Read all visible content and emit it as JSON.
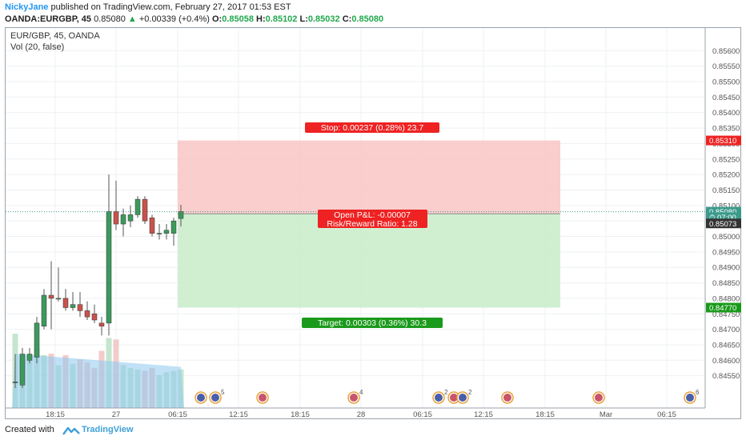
{
  "header": {
    "author": "NickyJane",
    "published": "published on TradingView.com, February 27, 2017 01:53 EST",
    "symbol": "OANDA:EURGBP, 45",
    "last": "0.85080",
    "change": "+0.00339 (+0.4%)",
    "o_label": "O:",
    "o": "0.85058",
    "h_label": "H:",
    "h": "0.85102",
    "l_label": "L:",
    "l": "0.85032",
    "c_label": "C:",
    "c": "0.85080"
  },
  "legend": {
    "title": "EUR/GBP, 45, OANDA",
    "volume": "Vol (20, false)"
  },
  "footer": {
    "created": "Created with",
    "brand": "TradingView"
  },
  "colors": {
    "up": "#3c9a5c",
    "down": "#c8534b",
    "stop_zone": "#f8c6c4",
    "target_zone": "#c8ecc9",
    "stop_label": "#ee2222",
    "target_label": "#1a9a1a",
    "volume_ma": "#8ec8f0"
  },
  "chart_data": {
    "type": "candlestick",
    "y_axis": {
      "range": [
        0.845,
        0.8563
      ],
      "ticks": [
        "0.85600",
        "0.85550",
        "0.85500",
        "0.85450",
        "0.85400",
        "0.85350",
        "0.85300",
        "0.85250",
        "0.85200",
        "0.85150",
        "0.85100",
        "0.85050",
        "0.85000",
        "0.84950",
        "0.84900",
        "0.84850",
        "0.84800",
        "0.84750",
        "0.84700",
        "0.84650",
        "0.84600",
        "0.84550"
      ]
    },
    "x_axis": {
      "ticks": [
        "18:15",
        "27",
        "06:15",
        "12:15",
        "18:15",
        "28",
        "06:15",
        "12:15",
        "18:15",
        "Mar",
        "06:15"
      ]
    },
    "candles": [
      {
        "o": 0.8453,
        "h": 0.8462,
        "l": 0.8451,
        "c": 0.8453
      },
      {
        "o": 0.8452,
        "h": 0.8464,
        "l": 0.8451,
        "c": 0.8462
      },
      {
        "o": 0.846,
        "h": 0.8464,
        "l": 0.8459,
        "c": 0.8462
      },
      {
        "o": 0.8461,
        "h": 0.8474,
        "l": 0.8459,
        "c": 0.8472
      },
      {
        "o": 0.8471,
        "h": 0.8483,
        "l": 0.847,
        "c": 0.8481
      },
      {
        "o": 0.8481,
        "h": 0.8492,
        "l": 0.847,
        "c": 0.848
      },
      {
        "o": 0.848,
        "h": 0.849,
        "l": 0.8479,
        "c": 0.848
      },
      {
        "o": 0.848,
        "h": 0.8483,
        "l": 0.8476,
        "c": 0.8477
      },
      {
        "o": 0.8477,
        "h": 0.8482,
        "l": 0.8476,
        "c": 0.8478
      },
      {
        "o": 0.8478,
        "h": 0.8482,
        "l": 0.8474,
        "c": 0.8476
      },
      {
        "o": 0.8476,
        "h": 0.8479,
        "l": 0.8473,
        "c": 0.8474
      },
      {
        "o": 0.8475,
        "h": 0.8478,
        "l": 0.8472,
        "c": 0.8473
      },
      {
        "o": 0.8472,
        "h": 0.8474,
        "l": 0.8468,
        "c": 0.8471
      },
      {
        "o": 0.8472,
        "h": 0.852,
        "l": 0.8468,
        "c": 0.8508
      },
      {
        "o": 0.8508,
        "h": 0.8518,
        "l": 0.8502,
        "c": 0.8504
      },
      {
        "o": 0.8504,
        "h": 0.8509,
        "l": 0.85,
        "c": 0.8507
      },
      {
        "o": 0.8505,
        "h": 0.851,
        "l": 0.8503,
        "c": 0.8507
      },
      {
        "o": 0.8507,
        "h": 0.8513,
        "l": 0.8506,
        "c": 0.8512
      },
      {
        "o": 0.8512,
        "h": 0.8513,
        "l": 0.8504,
        "c": 0.8505
      },
      {
        "o": 0.8506,
        "h": 0.8507,
        "l": 0.85,
        "c": 0.8501
      },
      {
        "o": 0.8501,
        "h": 0.8504,
        "l": 0.8499,
        "c": 0.8501
      },
      {
        "o": 0.8501,
        "h": 0.8504,
        "l": 0.8499,
        "c": 0.8502
      },
      {
        "o": 0.8501,
        "h": 0.8506,
        "l": 0.8497,
        "c": 0.8505
      },
      {
        "o": 0.85058,
        "h": 0.85102,
        "l": 0.85032,
        "c": 0.8508
      }
    ],
    "volumes": [
      520,
      330,
      340,
      420,
      370,
      380,
      300,
      370,
      310,
      340,
      320,
      280,
      400,
      490,
      480,
      300,
      280,
      270,
      260,
      280,
      230,
      250,
      260,
      270
    ],
    "position": {
      "entry": 0.85073,
      "stop": 0.8531,
      "target": 0.8477,
      "stop_label": "Stop: 0.00237 (0.28%) 23.7",
      "target_label": "Target: 0.00303 (0.36%) 30.3",
      "pnl_label": "Open P&L: -0.00007",
      "rr_label": "Risk/Reward Ratio: 1.28"
    },
    "price_tags": [
      {
        "label": "0.85310",
        "role": "stop"
      },
      {
        "label": "0.85080",
        "role": "last"
      },
      {
        "label": "07:00",
        "role": "countdown"
      },
      {
        "label": "0.85073",
        "role": "entry"
      },
      {
        "label": "0.84770",
        "role": "target"
      }
    ],
    "events": [
      {
        "flag": "eu"
      },
      {
        "flag": "eu",
        "count": "5"
      },
      {
        "flag": "uk"
      },
      {
        "flag": "uk",
        "count": "4"
      },
      {
        "flag": "eu",
        "count": "2"
      },
      {
        "flag": "uk"
      },
      {
        "flag": "eu",
        "count": "2"
      },
      {
        "flag": "uk"
      },
      {
        "flag": "uk"
      },
      {
        "flag": "eu",
        "count": "6"
      }
    ]
  }
}
